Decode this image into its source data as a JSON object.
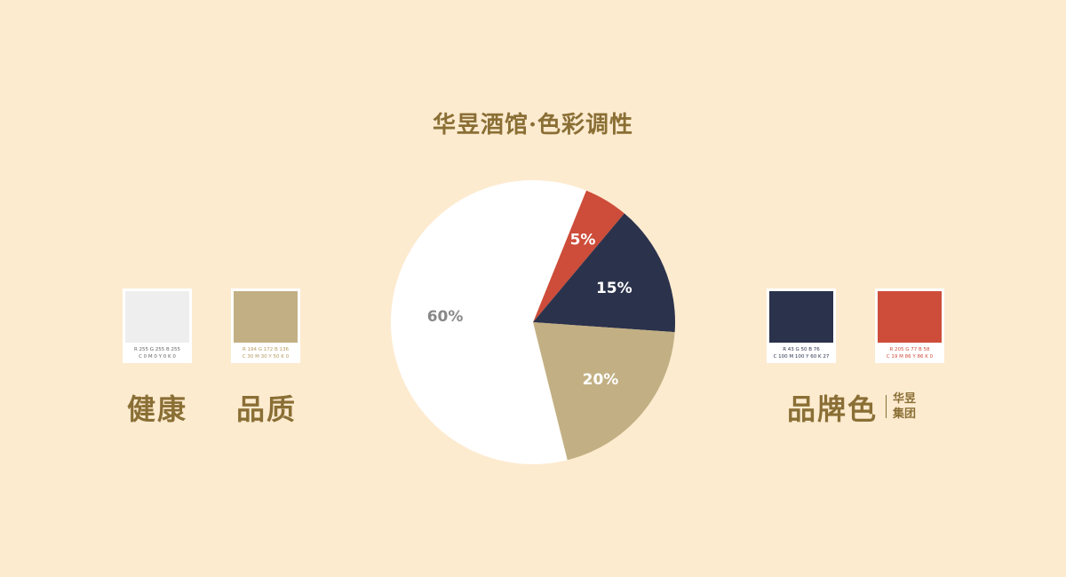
{
  "title": "华昱酒馆·色彩调性",
  "chart_data": {
    "type": "pie",
    "title": "华昱酒馆·色彩调性",
    "slices": [
      {
        "label": "5%",
        "value": 5,
        "color": "#cd4d3a"
      },
      {
        "label": "15%",
        "value": 15,
        "color": "#2b324c"
      },
      {
        "label": "20%",
        "value": 20,
        "color": "#c2b084"
      },
      {
        "label": "60%",
        "value": 60,
        "color": "#ffffff"
      }
    ],
    "label_colors": [
      "#ffffff",
      "#ffffff",
      "#ffffff",
      "#888888"
    ]
  },
  "swatches": [
    {
      "name": "健康",
      "color": "#eeeeee",
      "rgb": "R 255   G 255   B 255",
      "cmyk": "C 0  M 0   Y 0   K 0",
      "text_color": "#666666"
    },
    {
      "name": "品质",
      "color": "#c2b084",
      "rgb": "R 194   G 172   B 136",
      "cmyk": "C 30  M 30  Y 50   K 0",
      "text_color": "#b49a5e"
    },
    {
      "color": "#2b324c",
      "rgb": "R 43    G 50    B 76",
      "cmyk": "C 100  M 100   Y 60   K 27",
      "text_color": "#2b324c"
    },
    {
      "color": "#cd4d3a",
      "rgb": "R 205    G 77    B 58",
      "cmyk": "C 19  M 86  Y 86   K 0",
      "text_color": "#cd4d3a"
    }
  ],
  "brand": {
    "label": "品牌色",
    "group_line1": "华昱",
    "group_line2": "集团"
  }
}
